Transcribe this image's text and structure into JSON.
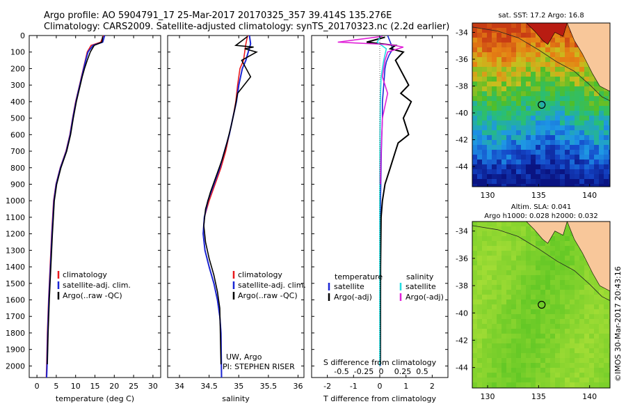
{
  "header": {
    "line1": "Argo profile: AO 5904791_17 25-Mar-2017 20170325_357 39.414S 135.276E",
    "line2": "Climatology: CARS2009. Satellite-adjusted climatology: synTS_20170323.nc (2.2d earlier)"
  },
  "credit": "©IMOS 30-Mar-2017 20:43:16",
  "colors": {
    "climatology": "#e8191c",
    "satellite": "#1a26d4",
    "argo": "#000000",
    "salinity_satellite": "#22dbe0",
    "salinity_argo": "#e020d8"
  },
  "chart_data": [
    {
      "type": "line",
      "name": "temperature-profile",
      "xlabel": "temperature (deg C)",
      "xlim": [
        -2,
        32
      ],
      "xticks": [
        0,
        5,
        10,
        15,
        20,
        25,
        30
      ],
      "ylim": [
        0,
        2070
      ],
      "yticks": [
        0,
        100,
        200,
        300,
        400,
        500,
        600,
        700,
        800,
        900,
        1000,
        1100,
        1200,
        1300,
        1400,
        1500,
        1600,
        1700,
        1800,
        1900,
        2000
      ],
      "legend": [
        "climatology",
        "satellite-adj. clim.",
        "Argo(..raw -QC)"
      ],
      "series": [
        {
          "name": "climatology",
          "x": [
            17.2,
            16.5,
            14.0,
            13.0,
            12.5,
            12.0,
            11.5,
            11.0,
            10.5,
            10.0,
            9.6,
            9.2,
            8.5,
            7.5,
            6.0,
            4.9,
            4.3,
            3.8,
            3.4,
            3.0,
            2.7,
            2.5,
            2.4
          ],
          "y": [
            0,
            40,
            60,
            100,
            150,
            200,
            250,
            300,
            350,
            400,
            450,
            500,
            600,
            700,
            800,
            900,
            1000,
            1200,
            1400,
            1600,
            1800,
            2000,
            2070
          ]
        },
        {
          "name": "satellite-adj. clim.",
          "x": [
            17.5,
            17.0,
            14.5,
            13.2,
            12.6,
            12.1,
            11.6,
            11.1,
            10.6,
            10.1,
            9.7,
            9.3,
            8.6,
            7.6,
            6.1,
            5.0,
            4.4,
            3.9,
            3.5,
            3.1,
            2.8,
            2.6,
            2.5
          ],
          "y": [
            0,
            40,
            60,
            100,
            150,
            200,
            250,
            300,
            350,
            400,
            450,
            500,
            600,
            700,
            800,
            900,
            1000,
            1200,
            1400,
            1600,
            1800,
            2000,
            2070
          ]
        },
        {
          "name": "Argo(..raw -QC)",
          "x": [
            17.0,
            16.8,
            14.8,
            13.8,
            13.0,
            12.3,
            11.7,
            11.2,
            10.7,
            10.2,
            9.8,
            9.4,
            8.7,
            7.7,
            6.2,
            5.1,
            4.5,
            4.0,
            3.6,
            3.2,
            2.9,
            2.7
          ],
          "y": [
            5,
            40,
            60,
            100,
            150,
            200,
            250,
            300,
            350,
            400,
            450,
            500,
            600,
            700,
            800,
            900,
            1000,
            1200,
            1400,
            1600,
            1800,
            1990
          ]
        }
      ]
    },
    {
      "type": "line",
      "name": "salinity-profile",
      "xlabel": "salinity",
      "xlim": [
        33.8,
        36.1
      ],
      "xticks": [
        34,
        34.5,
        35,
        35.5,
        36
      ],
      "ylim": [
        0,
        2070
      ],
      "legend": [
        "climatology",
        "satellite-adj. clim.",
        "Argo(..raw -QC)"
      ],
      "annotations": [
        "UW, Argo",
        "PI: STEPHEN RISER"
      ],
      "series": [
        {
          "name": "climatology",
          "x": [
            35.15,
            35.12,
            35.1,
            35.08,
            35.02,
            34.98,
            34.95,
            34.9,
            34.84,
            34.78,
            34.7,
            34.6,
            34.5,
            34.42,
            34.4,
            34.43,
            34.5,
            34.58,
            34.64,
            34.68,
            34.7,
            34.71
          ],
          "y": [
            0,
            50,
            100,
            150,
            200,
            300,
            400,
            500,
            600,
            700,
            800,
            900,
            1000,
            1100,
            1200,
            1300,
            1400,
            1500,
            1600,
            1700,
            1800,
            2070
          ]
        },
        {
          "name": "satellite-adj. clim.",
          "x": [
            35.18,
            35.2,
            35.16,
            35.12,
            35.06,
            35.0,
            34.96,
            34.9,
            34.84,
            34.76,
            34.68,
            34.58,
            34.48,
            34.42,
            34.4,
            34.43,
            34.5,
            34.58,
            34.64,
            34.68,
            34.7,
            34.71
          ],
          "y": [
            0,
            50,
            100,
            150,
            200,
            300,
            400,
            500,
            600,
            700,
            800,
            900,
            1000,
            1100,
            1200,
            1300,
            1400,
            1500,
            1600,
            1700,
            1800,
            2070
          ]
        },
        {
          "name": "Argo(..raw -QC)",
          "x": [
            35.15,
            34.95,
            35.25,
            35.1,
            35.3,
            35.05,
            35.2,
            34.98,
            34.93,
            34.87,
            34.8,
            34.72,
            34.62,
            34.52,
            34.44,
            34.41,
            34.44,
            34.5,
            34.58,
            34.64,
            34.68,
            34.7
          ],
          "y": [
            5,
            60,
            70,
            80,
            100,
            150,
            250,
            350,
            450,
            550,
            650,
            750,
            850,
            950,
            1050,
            1150,
            1250,
            1350,
            1450,
            1550,
            1650,
            1990
          ]
        }
      ]
    },
    {
      "type": "line",
      "name": "difference-profile",
      "xlabel": "T difference from climatology",
      "xlabel2": "S difference from climatology",
      "xlim": [
        -2.6,
        2.6
      ],
      "xticks": [
        -2,
        -1,
        0,
        1,
        2
      ],
      "xticks2": [
        "-0.5",
        "-0.25",
        "0",
        "0.25",
        "0.5"
      ],
      "ylim": [
        0,
        2070
      ],
      "legend_headers": [
        "temperature",
        "salinity"
      ],
      "legend": [
        "satellite",
        "Argo(-adj)",
        "satellite",
        "Argo(-adj)"
      ],
      "series": [
        {
          "name": "temperature satellite",
          "x": [
            0.3,
            0.4,
            0.5,
            0.35,
            0.25,
            0.2,
            0.15,
            0.1,
            0.1,
            0.08,
            0.06,
            0.05,
            0.04,
            0.03,
            0.02,
            0.02
          ],
          "y": [
            0,
            40,
            80,
            120,
            160,
            200,
            300,
            400,
            500,
            600,
            700,
            800,
            900,
            1000,
            1400,
            2000
          ]
        },
        {
          "name": "temperature Argo(-adj)",
          "x": [
            0.2,
            -0.5,
            0.6,
            0.4,
            0.9,
            0.6,
            1.1,
            0.8,
            1.2,
            0.9,
            1.1,
            0.7,
            0.6,
            0.4,
            0.2,
            0.1,
            0.05,
            0.03,
            0.02
          ],
          "y": [
            10,
            40,
            60,
            80,
            100,
            150,
            300,
            350,
            400,
            500,
            600,
            650,
            700,
            800,
            900,
            1000,
            1100,
            1400,
            1990
          ]
        },
        {
          "name": "salinity satellite",
          "x": [
            0.05,
            -0.1,
            0.25,
            0.15,
            0.05,
            0.02,
            0.01,
            0.0,
            0.0
          ],
          "y": [
            0,
            40,
            80,
            150,
            250,
            400,
            600,
            1000,
            2000
          ]
        },
        {
          "name": "salinity Argo(-adj)",
          "x": [
            0.1,
            -1.6,
            0.4,
            0.9,
            0.3,
            0.2,
            0.1,
            0.3,
            0.1,
            0.05,
            0.02
          ],
          "y": [
            5,
            40,
            55,
            70,
            100,
            150,
            250,
            350,
            500,
            700,
            900
          ]
        }
      ]
    },
    {
      "type": "heatmap",
      "name": "sst-map",
      "title": "sat. SST: 17.2  Argo: 16.8",
      "xlim": [
        128.5,
        142
      ],
      "ylim": [
        -45.5,
        -33.3
      ],
      "xticks": [
        130,
        135,
        140
      ],
      "yticks": [
        -34,
        -36,
        -38,
        -40,
        -42,
        -44
      ],
      "marker": {
        "lon": 135.3,
        "lat": -39.4
      }
    },
    {
      "type": "heatmap",
      "name": "sla-map",
      "title": "Altim. SLA: 0.041",
      "subtitle": "Argo h1000: 0.028 h2000: 0.032",
      "xlim": [
        128.5,
        142
      ],
      "ylim": [
        -45.5,
        -33.3
      ],
      "xticks": [
        130,
        135,
        140
      ],
      "yticks": [
        -34,
        -36,
        -38,
        -40,
        -42,
        -44
      ],
      "marker": {
        "lon": 135.3,
        "lat": -39.4
      }
    }
  ]
}
